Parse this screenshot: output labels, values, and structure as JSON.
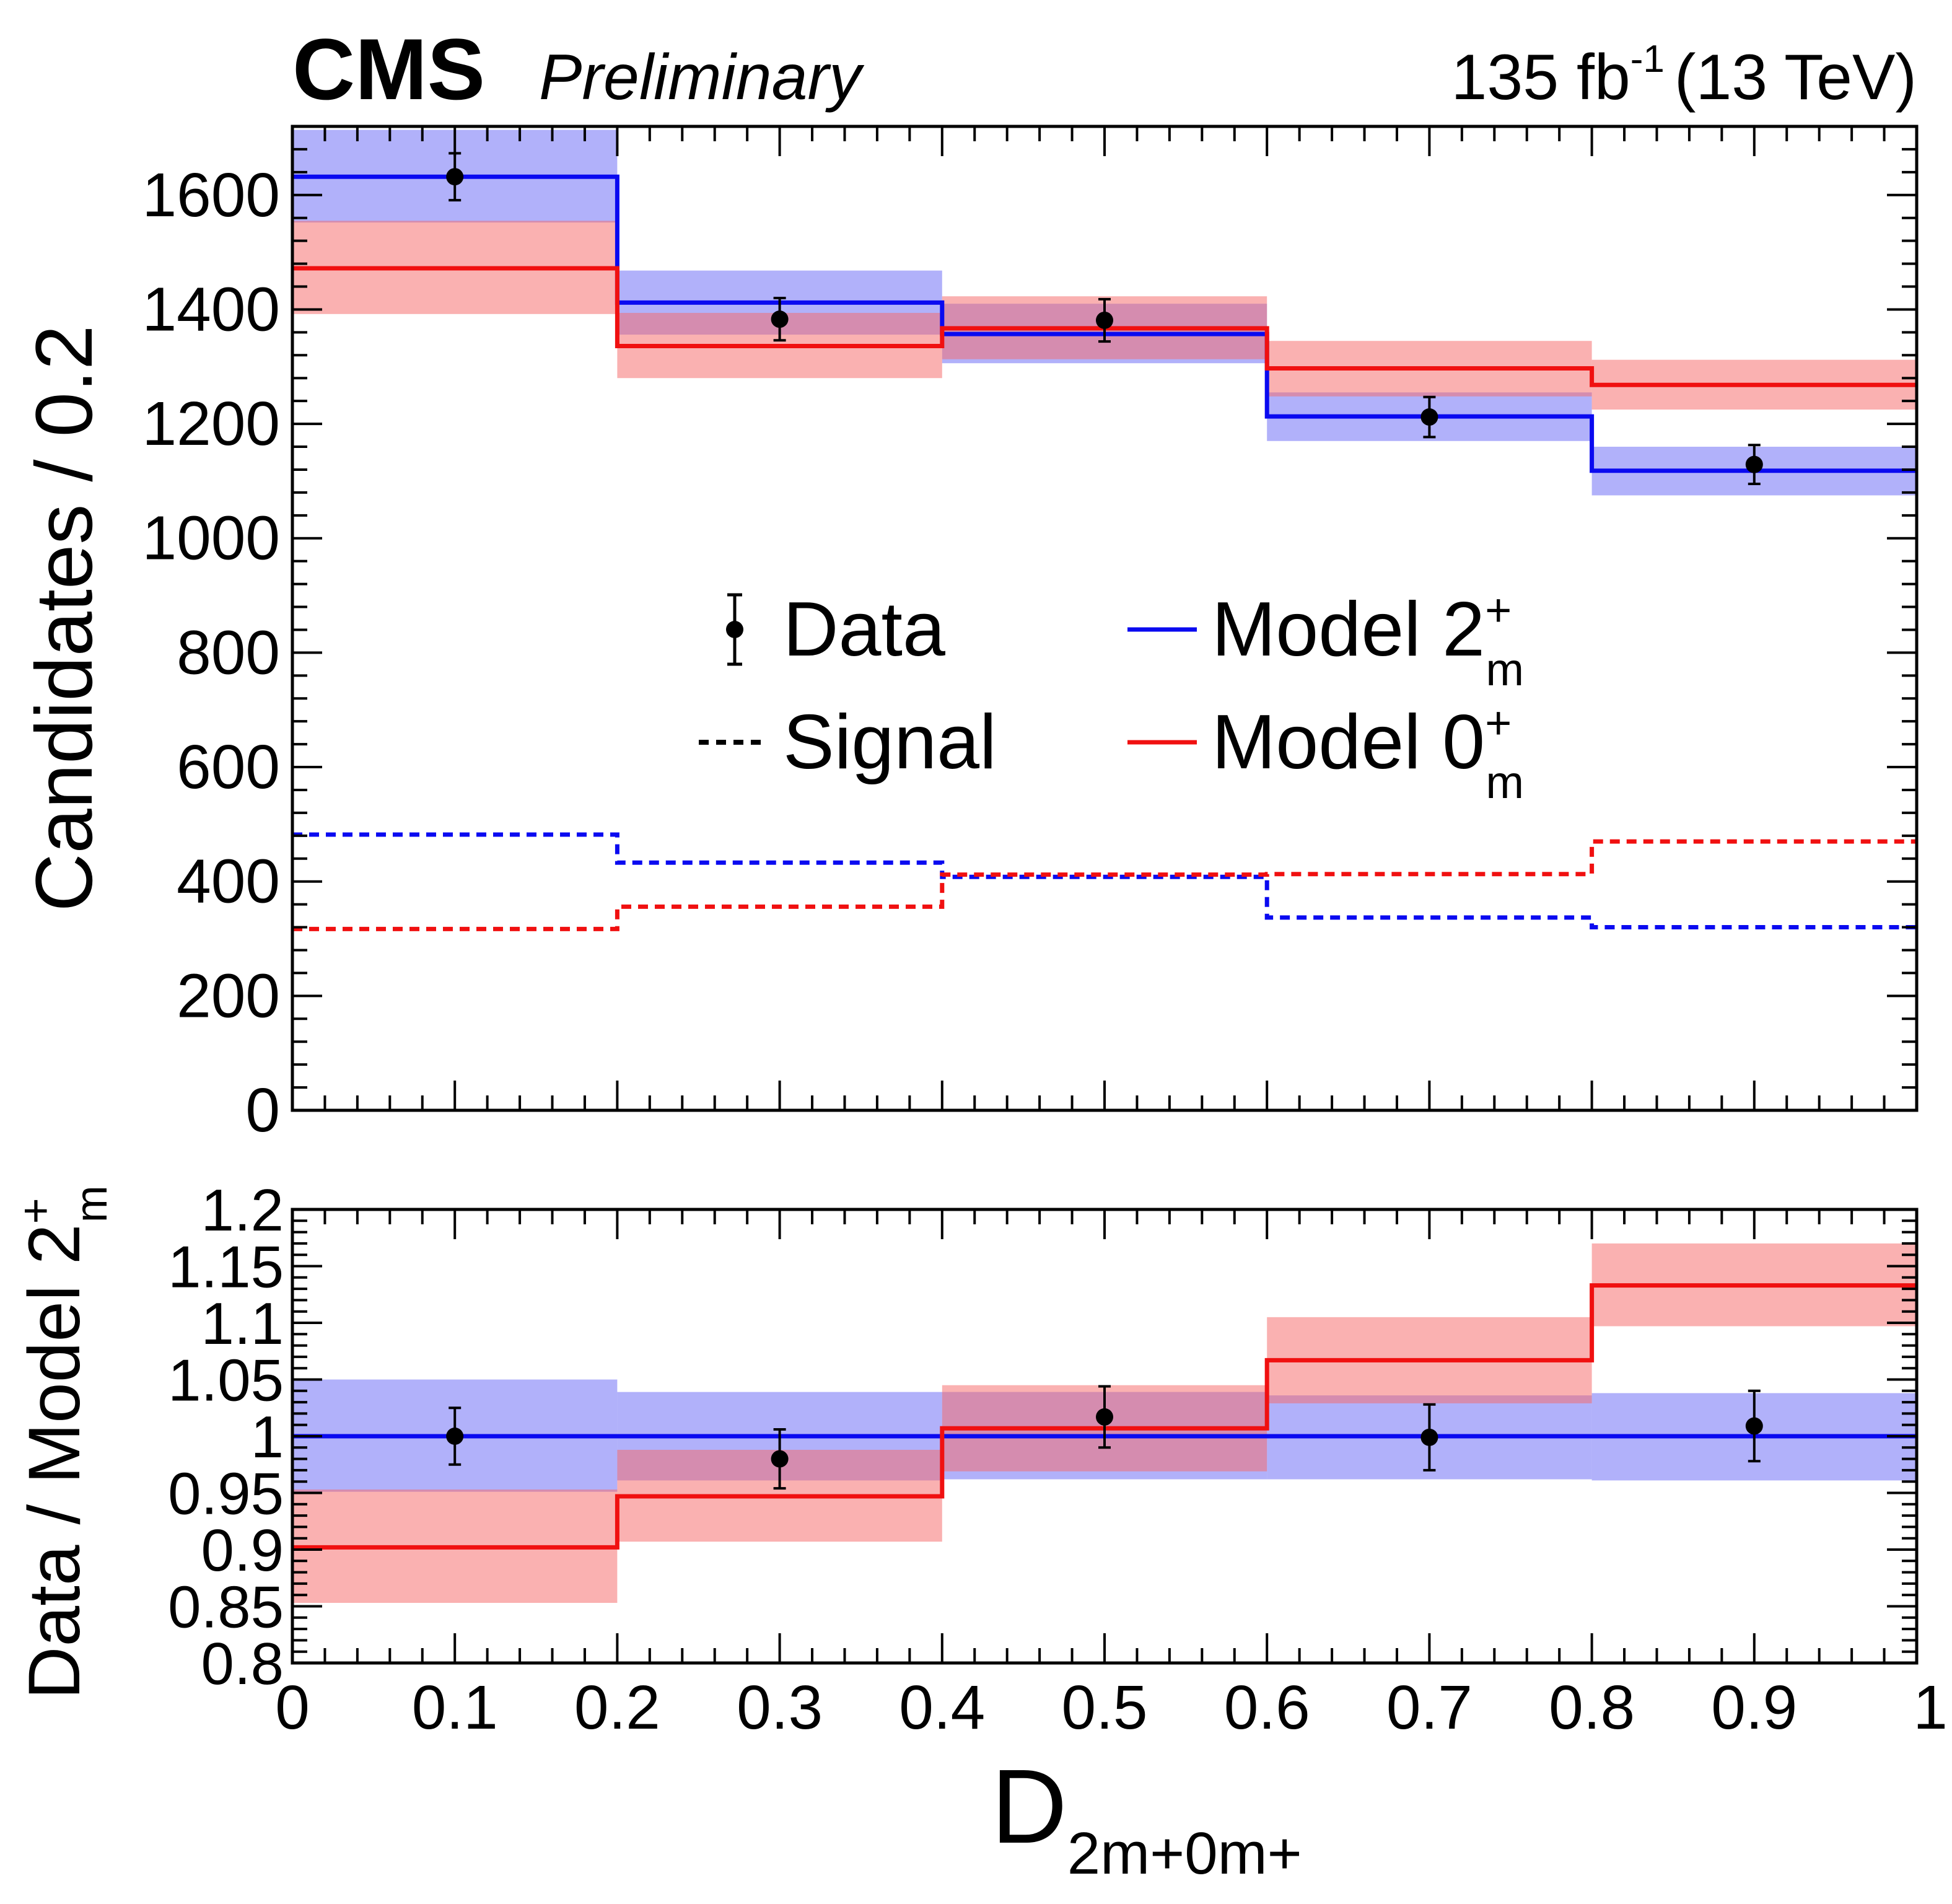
{
  "header": {
    "experiment": "CMS",
    "status": "Preliminary",
    "luminosity_value": "135 fb",
    "luminosity_exponent": "-1",
    "energy": "(13 TeV)"
  },
  "colors": {
    "model_2m": "#0a0af0",
    "model_0m": "#f01010",
    "band_2m": "rgba(105,105,245,0.52)",
    "band_0m": "rgba(245,105,105,0.52)",
    "data": "#000000"
  },
  "legend": {
    "data_label": "Data",
    "signal_label": "Signal",
    "model_2m_label": "Model 2",
    "model_0m_label": "Model 0",
    "superscript": "+",
    "subscript": "m"
  },
  "chart_data": [
    {
      "type": "histogram",
      "name": "main-panel",
      "ylabel": "Candidates / 0.2",
      "xlim": [
        0,
        1
      ],
      "ylim": [
        0,
        1720
      ],
      "yticks": [
        0,
        200,
        400,
        600,
        800,
        1000,
        1200,
        1400,
        1600
      ],
      "ytick_labels": [
        "0",
        "200",
        "400",
        "600",
        "800",
        "1000",
        "1200",
        "1400",
        "1600"
      ],
      "bin_edges": [
        0,
        0.2,
        0.4,
        0.6,
        0.8,
        1.0
      ],
      "series": [
        {
          "name": "Model 2m+",
          "style": "solid",
          "color_key": "model_2m",
          "values": [
            1632,
            1412,
            1357,
            1213,
            1118
          ],
          "band_low": [
            1552,
            1356,
            1306,
            1170,
            1075
          ],
          "band_high": [
            1714,
            1468,
            1410,
            1255,
            1160
          ]
        },
        {
          "name": "Model 0m+",
          "style": "solid",
          "color_key": "model_0m",
          "values": [
            1472,
            1336,
            1367,
            1297,
            1268
          ],
          "band_low": [
            1392,
            1280,
            1313,
            1248,
            1225
          ],
          "band_high": [
            1555,
            1394,
            1423,
            1345,
            1312
          ]
        },
        {
          "name": "Signal 2m+",
          "style": "dashed",
          "color_key": "model_2m",
          "values": [
            482,
            433,
            408,
            337,
            320
          ]
        },
        {
          "name": "Signal 0m+",
          "style": "dashed",
          "color_key": "model_0m",
          "values": [
            317,
            356,
            412,
            413,
            470
          ]
        },
        {
          "name": "Data",
          "style": "points",
          "color_key": "data",
          "x": [
            0.1,
            0.3,
            0.5,
            0.7,
            0.9
          ],
          "values": [
            1632,
            1383,
            1381,
            1212,
            1129
          ],
          "errors": [
            41,
            37,
            37,
            35,
            34
          ]
        }
      ]
    },
    {
      "type": "histogram",
      "name": "ratio-panel",
      "xlabel": "D",
      "xlabel_subscript": "2m+0m+",
      "ylabel": "Data / Model 2",
      "xlim": [
        0,
        1
      ],
      "ylim": [
        0.8,
        1.2
      ],
      "xticks": [
        0,
        0.1,
        0.2,
        0.3,
        0.4,
        0.5,
        0.6,
        0.7,
        0.8,
        0.9,
        1
      ],
      "xtick_labels": [
        "0",
        "0.1",
        "0.2",
        "0.3",
        "0.4",
        "0.5",
        "0.6",
        "0.7",
        "0.8",
        "0.9",
        "1"
      ],
      "yticks": [
        0.8,
        0.85,
        0.9,
        0.95,
        1,
        1.05,
        1.1,
        1.15,
        1.2
      ],
      "ytick_labels": [
        "0.8",
        "0.85",
        "0.9",
        "0.95",
        "1",
        "1.05",
        "1.1",
        "1.15",
        "1.2"
      ],
      "bin_edges": [
        0,
        0.2,
        0.4,
        0.6,
        0.8,
        1.0
      ],
      "series": [
        {
          "name": "Model 2m+ ratio",
          "style": "solid",
          "color_key": "model_2m",
          "values": [
            1.0,
            1.0,
            1.0,
            1.0,
            1.0
          ],
          "band_low": [
            0.951,
            0.961,
            0.962,
            0.962,
            0.961
          ],
          "band_high": [
            1.05,
            1.039,
            1.039,
            1.036,
            1.038
          ]
        },
        {
          "name": "Model 0m+ ratio",
          "style": "solid",
          "color_key": "model_0m",
          "values": [
            0.902,
            0.947,
            1.007,
            1.067,
            1.133
          ],
          "band_low": [
            0.853,
            0.907,
            0.969,
            1.029,
            1.097
          ],
          "band_high": [
            0.953,
            0.988,
            1.045,
            1.105,
            1.17
          ]
        },
        {
          "name": "Data ratio",
          "style": "points",
          "color_key": "data",
          "x": [
            0.1,
            0.3,
            0.5,
            0.7,
            0.9
          ],
          "values": [
            1.0,
            0.98,
            1.017,
            0.999,
            1.009
          ],
          "errors": [
            0.025,
            0.026,
            0.027,
            0.029,
            0.031
          ]
        }
      ]
    }
  ]
}
